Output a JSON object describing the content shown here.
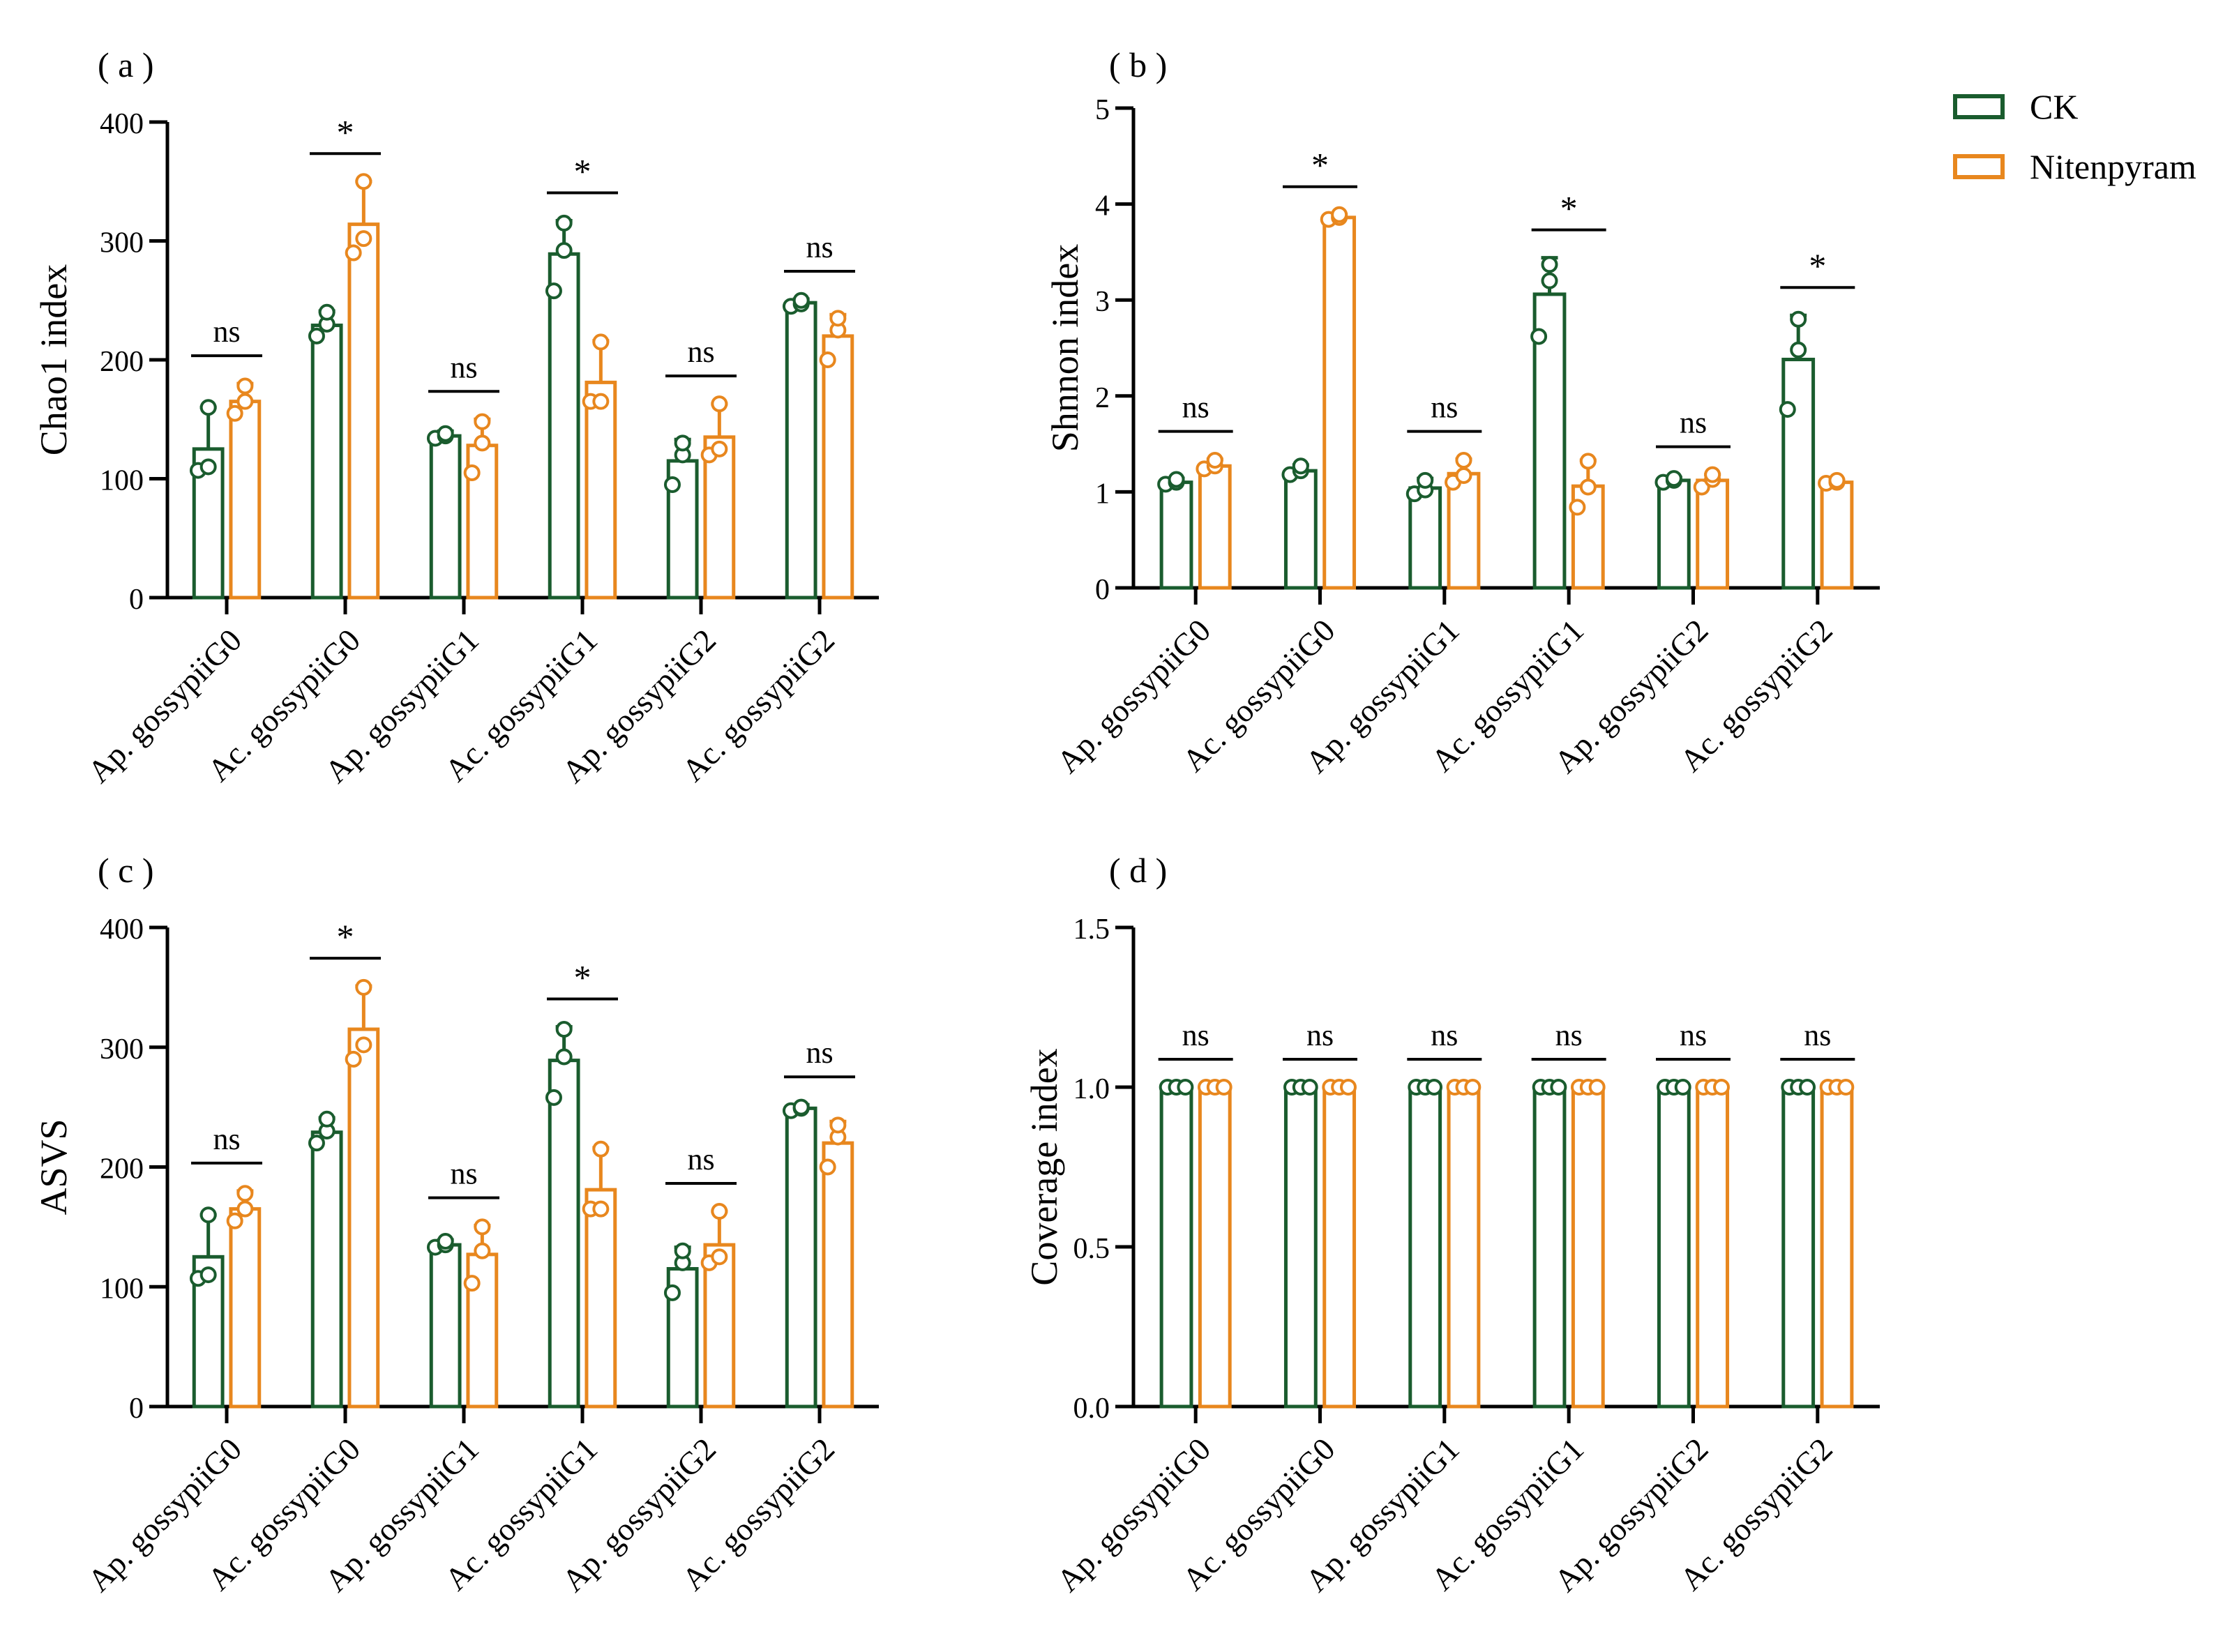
{
  "legend": {
    "ck_label": "CK",
    "nit_label": "Nitenpyram"
  },
  "colors": {
    "ck": "#1a5c2e",
    "nitenpyram": "#e8871e"
  },
  "chart_data": [
    {
      "type": "bar",
      "panel_label": "( a )",
      "ylabel": "Chao1 index",
      "ylim": [
        0,
        400
      ],
      "yticks": [
        "0",
        "100",
        "200",
        "300",
        "400"
      ],
      "categories": [
        "Ap. gossypiiG0",
        "Ac. gossypiiG0",
        "Ap. gossypiiG1",
        "Ac. gossypiiG1",
        "Ap. gossypiiG2",
        "Ac. gossypiiG2"
      ],
      "series": [
        {
          "name": "CK",
          "values": [
            125,
            229,
            136,
            289,
            115,
            248
          ],
          "errors": [
            35,
            12,
            4,
            28,
            18,
            3
          ],
          "points": [
            [
              107,
              110,
              160
            ],
            [
              220,
              230,
              240
            ],
            [
              134,
              136,
              138
            ],
            [
              258,
              292,
              315
            ],
            [
              95,
              120,
              130
            ],
            [
              245,
              247,
              250
            ]
          ]
        },
        {
          "name": "Nitenpyram",
          "values": [
            165,
            314,
            128,
            181,
            135,
            220
          ],
          "errors": [
            15,
            36,
            22,
            35,
            28,
            18
          ],
          "points": [
            [
              155,
              165,
              178
            ],
            [
              290,
              302,
              350
            ],
            [
              105,
              130,
              148
            ],
            [
              165,
              165,
              215
            ],
            [
              120,
              125,
              163
            ],
            [
              200,
              225,
              235
            ]
          ]
        }
      ],
      "significance": [
        "ns",
        "*",
        "ns",
        "*",
        "ns",
        "ns"
      ]
    },
    {
      "type": "bar",
      "panel_label": "( b )",
      "ylabel": "Shnnon index",
      "ylim": [
        0,
        5
      ],
      "yticks": [
        "0",
        "1",
        "2",
        "3",
        "4",
        "5"
      ],
      "categories": [
        "Ap. gossypiiG0",
        "Ac. gossypiiG0",
        "Ap. gossypiiG1",
        "Ac. gossypiiG1",
        "Ap. gossypiiG2",
        "Ac. gossypiiG2"
      ],
      "series": [
        {
          "name": "CK",
          "values": [
            1.1,
            1.22,
            1.04,
            3.06,
            1.12,
            2.38
          ],
          "errors": [
            0.04,
            0.06,
            0.1,
            0.38,
            0.03,
            0.46
          ],
          "points": [
            [
              1.08,
              1.1,
              1.13
            ],
            [
              1.18,
              1.22,
              1.27
            ],
            [
              0.98,
              1.02,
              1.12
            ],
            [
              2.62,
              3.2,
              3.37
            ],
            [
              1.1,
              1.12,
              1.14
            ],
            [
              1.86,
              2.48,
              2.8
            ]
          ]
        },
        {
          "name": "Nitenpyram",
          "values": [
            1.27,
            3.86,
            1.19,
            1.06,
            1.12,
            1.1
          ],
          "errors": [
            0.07,
            0.03,
            0.15,
            0.27,
            0.06,
            0.02
          ],
          "points": [
            [
              1.24,
              1.27,
              1.33
            ],
            [
              3.84,
              3.86,
              3.89
            ],
            [
              1.1,
              1.17,
              1.33
            ],
            [
              0.84,
              1.05,
              1.32
            ],
            [
              1.05,
              1.13,
              1.18
            ],
            [
              1.09,
              1.1,
              1.12
            ]
          ]
        }
      ],
      "significance": [
        "ns",
        "*",
        "ns",
        "*",
        "ns",
        "*"
      ]
    },
    {
      "type": "bar",
      "panel_label": "( c )",
      "ylabel": "ASVS",
      "ylim": [
        0,
        400
      ],
      "yticks": [
        "0",
        "100",
        "200",
        "300",
        "400"
      ],
      "categories": [
        "Ap. gossypiiG0",
        "Ac. gossypiiG0",
        "Ap. gossypiiG1",
        "Ac. gossypiiG1",
        "Ap. gossypiiG2",
        "Ac. gossypiiG2"
      ],
      "series": [
        {
          "name": "CK",
          "values": [
            125,
            229,
            135,
            289,
            115,
            249
          ],
          "errors": [
            35,
            12,
            4,
            28,
            18,
            3
          ],
          "points": [
            [
              107,
              110,
              160
            ],
            [
              220,
              230,
              240
            ],
            [
              133,
              135,
              138
            ],
            [
              258,
              292,
              315
            ],
            [
              95,
              120,
              130
            ],
            [
              247,
              249,
              250
            ]
          ]
        },
        {
          "name": "Nitenpyram",
          "values": [
            165,
            315,
            127,
            181,
            135,
            220
          ],
          "errors": [
            15,
            36,
            24,
            35,
            28,
            18
          ],
          "points": [
            [
              155,
              165,
              178
            ],
            [
              290,
              302,
              350
            ],
            [
              103,
              130,
              150
            ],
            [
              165,
              165,
              215
            ],
            [
              120,
              125,
              163
            ],
            [
              200,
              225,
              235
            ]
          ]
        }
      ],
      "significance": [
        "ns",
        "*",
        "ns",
        "*",
        "ns",
        "ns"
      ]
    },
    {
      "type": "bar",
      "panel_label": "( d )",
      "ylabel": "Coverage index",
      "ylim": [
        0,
        1.5
      ],
      "yticks": [
        "0.0",
        "0.5",
        "1.0",
        "1.5"
      ],
      "categories": [
        "Ap. gossypiiG0",
        "Ac. gossypiiG0",
        "Ap. gossypiiG1",
        "Ac. gossypiiG1",
        "Ap. gossypiiG2",
        "Ac. gossypiiG2"
      ],
      "series": [
        {
          "name": "CK",
          "values": [
            1.0,
            1.0,
            1.0,
            1.0,
            1.0,
            1.0
          ],
          "errors": [
            0,
            0,
            0,
            0,
            0,
            0
          ],
          "points": [
            [
              1.0,
              1.0,
              1.0
            ],
            [
              1.0,
              1.0,
              1.0
            ],
            [
              1.0,
              1.0,
              1.0
            ],
            [
              1.0,
              1.0,
              1.0
            ],
            [
              1.0,
              1.0,
              1.0
            ],
            [
              1.0,
              1.0,
              1.0
            ]
          ]
        },
        {
          "name": "Nitenpyram",
          "values": [
            1.0,
            1.0,
            1.0,
            1.0,
            1.0,
            1.0
          ],
          "errors": [
            0,
            0,
            0,
            0,
            0,
            0
          ],
          "points": [
            [
              1.0,
              1.0,
              1.0
            ],
            [
              1.0,
              1.0,
              1.0
            ],
            [
              1.0,
              1.0,
              1.0
            ],
            [
              1.0,
              1.0,
              1.0
            ],
            [
              1.0,
              1.0,
              1.0
            ],
            [
              1.0,
              1.0,
              1.0
            ]
          ]
        }
      ],
      "significance": [
        "ns",
        "ns",
        "ns",
        "ns",
        "ns",
        "ns"
      ]
    }
  ]
}
